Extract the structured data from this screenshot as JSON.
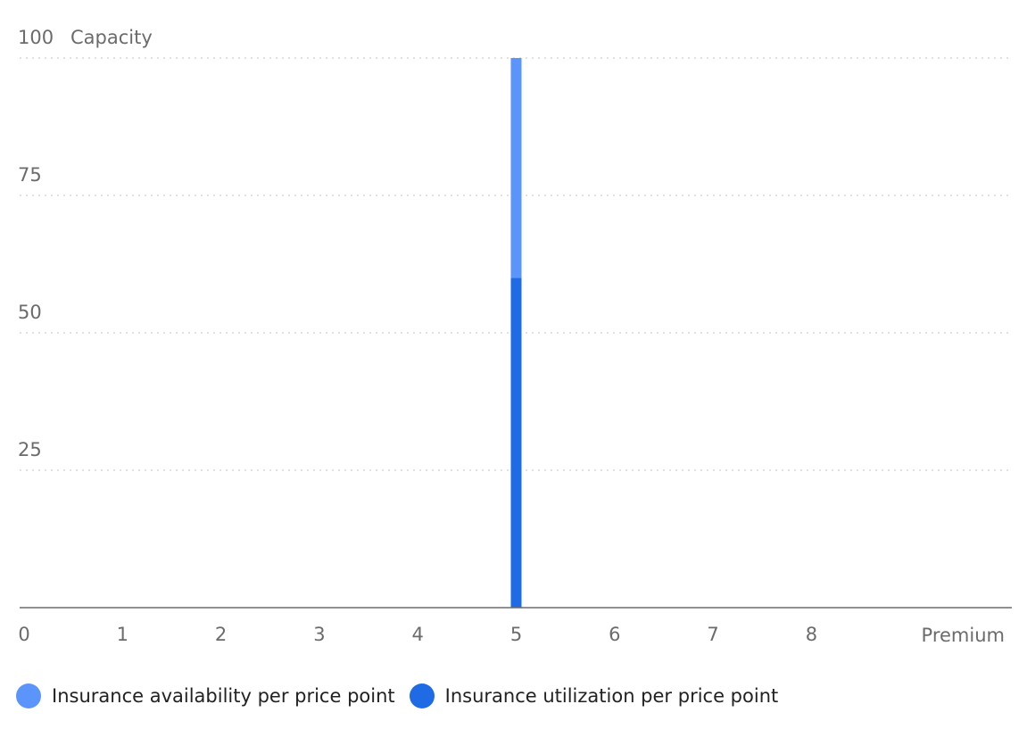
{
  "chart_data": {
    "type": "bar",
    "stacked": true,
    "x": [
      0,
      1,
      2,
      3,
      4,
      5,
      6,
      7,
      8
    ],
    "xlabel": "Premium",
    "ylabel": "Capacity",
    "xlim": [
      0,
      10
    ],
    "ylim": [
      0,
      100
    ],
    "yticks": [
      25,
      50,
      75,
      100
    ],
    "grid": "horizontal-dotted",
    "legend_position": "bottom-left",
    "series": [
      {
        "name": "Insurance utilization per price point",
        "color": "#1f6be6",
        "points": [
          {
            "x": 5,
            "y": 60
          }
        ]
      },
      {
        "name": "Insurance availability per price point",
        "color": "#5b95fb",
        "points": [
          {
            "x": 5,
            "y": 40
          }
        ]
      }
    ]
  },
  "legend": {
    "items": [
      {
        "label": "Insurance availability per price point",
        "color": "#5b95fb"
      },
      {
        "label": "Insurance utilization per price point",
        "color": "#1f6be6"
      }
    ]
  }
}
